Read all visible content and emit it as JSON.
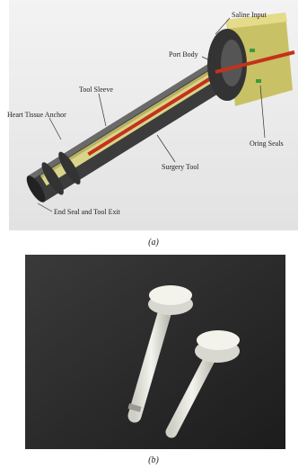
{
  "figure": {
    "panels": [
      {
        "caption": "(a)",
        "labels": [
          "Saline Input",
          "Port Body",
          "Tool Sleeve",
          "Heart Tissue Anchor",
          "Surgery Tool",
          "Oring Seals",
          "End Seal and Tool Exit"
        ]
      },
      {
        "caption": "(b)"
      }
    ]
  }
}
